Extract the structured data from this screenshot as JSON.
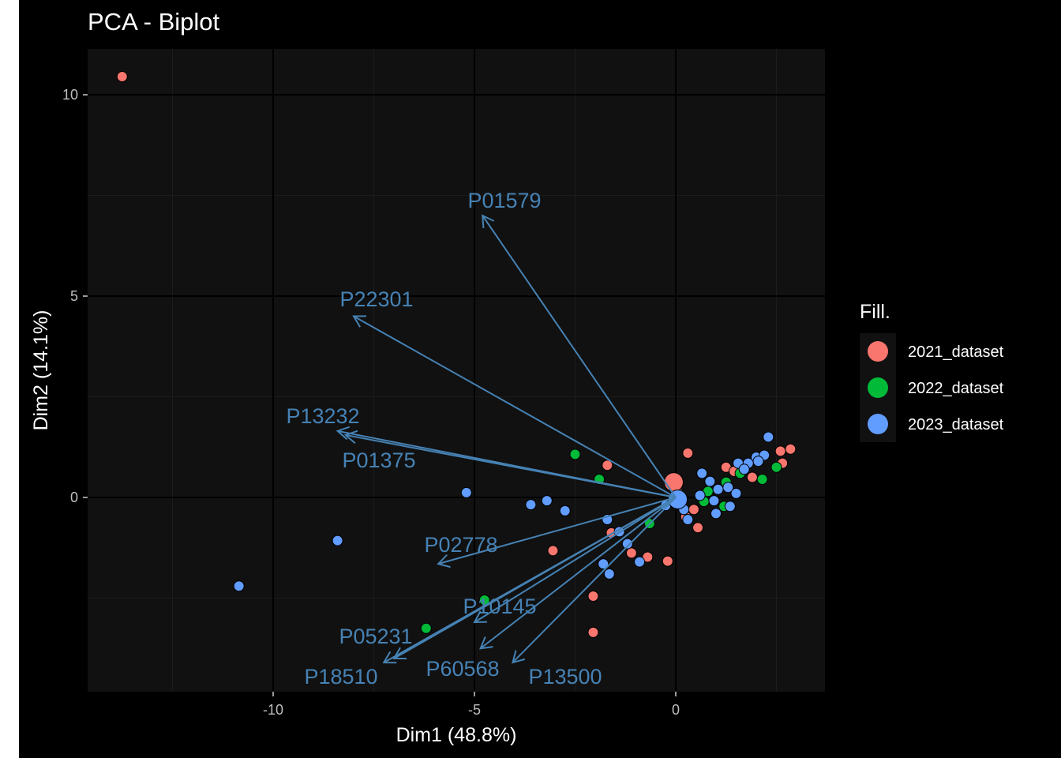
{
  "chart_data": {
    "type": "scatter",
    "title": "PCA - Biplot",
    "xlabel": "Dim1 (48.8%)",
    "ylabel": "Dim2 (14.1%)",
    "xlim": [
      -14.8,
      3.75
    ],
    "ylim": [
      -4.88,
      11.15
    ],
    "x_ticks": [
      -10,
      -5,
      0
    ],
    "y_ticks": [
      0,
      5,
      10
    ],
    "grid": true,
    "legend": {
      "title": "Fill.",
      "position": "right"
    },
    "colors": {
      "background": "#000000",
      "panel": "#111111",
      "grid_major": "#000000",
      "grid_minor": "#1c1c1c",
      "arrow": "#4682B4",
      "point_border": "#000000"
    },
    "series": [
      {
        "name": "2021_dataset",
        "color": "#F8766D",
        "points": [
          [
            -13.75,
            10.45
          ],
          [
            -1.7,
            0.8
          ],
          [
            0.3,
            1.1
          ],
          [
            -1.1,
            -1.38
          ],
          [
            -3.05,
            -1.32
          ],
          [
            -0.7,
            -1.48
          ],
          [
            -0.2,
            -1.58
          ],
          [
            -1.6,
            -0.88
          ],
          [
            -2.05,
            -2.45
          ],
          [
            -2.05,
            -3.35
          ],
          [
            0.55,
            -0.75
          ],
          [
            0.25,
            -0.48
          ],
          [
            0.45,
            -0.3
          ],
          [
            1.25,
            0.75
          ],
          [
            1.45,
            0.65
          ],
          [
            2.6,
            1.15
          ],
          [
            2.85,
            1.2
          ],
          [
            2.65,
            0.85
          ],
          [
            0.05,
            0.12
          ],
          [
            1.9,
            0.5
          ]
        ]
      },
      {
        "name": "2022_dataset",
        "color": "#00BA38",
        "points": [
          [
            -2.5,
            1.07
          ],
          [
            -1.9,
            0.45
          ],
          [
            -4.75,
            -2.55
          ],
          [
            -6.2,
            -3.25
          ],
          [
            -0.65,
            -0.65
          ],
          [
            1.2,
            -0.22
          ],
          [
            2.5,
            0.75
          ],
          [
            2.15,
            0.45
          ],
          [
            1.25,
            0.38
          ],
          [
            0.8,
            0.15
          ],
          [
            1.6,
            0.6
          ],
          [
            0.7,
            -0.1
          ]
        ]
      },
      {
        "name": "2023_dataset",
        "color": "#619CFF",
        "points": [
          [
            -10.85,
            -2.2
          ],
          [
            -8.4,
            -1.07
          ],
          [
            -5.2,
            0.12
          ],
          [
            -3.6,
            -0.18
          ],
          [
            -3.2,
            -0.08
          ],
          [
            -2.75,
            -0.33
          ],
          [
            -1.7,
            -0.55
          ],
          [
            -1.4,
            -0.85
          ],
          [
            -1.2,
            -1.15
          ],
          [
            -1.8,
            -1.65
          ],
          [
            -1.65,
            -1.9
          ],
          [
            -0.9,
            -1.6
          ],
          [
            -0.25,
            -0.2
          ],
          [
            0.3,
            -0.55
          ],
          [
            0.6,
            0.05
          ],
          [
            0.85,
            0.4
          ],
          [
            1.05,
            0.2
          ],
          [
            1.3,
            0.25
          ],
          [
            1.55,
            0.85
          ],
          [
            1.8,
            0.85
          ],
          [
            2.0,
            1.0
          ],
          [
            2.2,
            1.05
          ],
          [
            2.3,
            1.5
          ],
          [
            1.7,
            0.7
          ],
          [
            0.95,
            -0.08
          ],
          [
            1.35,
            -0.22
          ],
          [
            0.65,
            0.6
          ],
          [
            0.0,
            0.05
          ],
          [
            0.2,
            -0.3
          ],
          [
            1.5,
            0.1
          ],
          [
            1.0,
            -0.4
          ],
          [
            2.05,
            0.9
          ]
        ]
      }
    ],
    "variables": [
      {
        "name": "P01579",
        "x": -4.8,
        "y": 7.0
      },
      {
        "name": "P22301",
        "x": -8.0,
        "y": 4.5
      },
      {
        "name": "P13232",
        "x": -8.4,
        "y": 1.65
      },
      {
        "name": "P01375",
        "x": -8.2,
        "y": 1.55
      },
      {
        "name": "P02778",
        "x": -5.9,
        "y": -1.65
      },
      {
        "name": "P10145",
        "x": -5.0,
        "y": -3.1
      },
      {
        "name": "P05231",
        "x": -7.0,
        "y": -4.0
      },
      {
        "name": "P18510",
        "x": -7.25,
        "y": -4.1
      },
      {
        "name": "P60568",
        "x": -4.85,
        "y": -3.75
      },
      {
        "name": "P13500",
        "x": -4.05,
        "y": -4.1
      }
    ]
  }
}
